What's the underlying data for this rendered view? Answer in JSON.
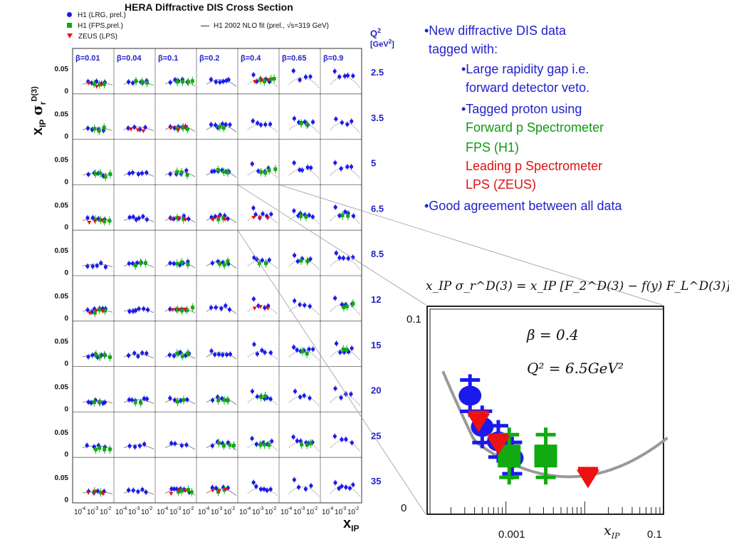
{
  "title": "HERA Diffractive DIS Cross Section",
  "legend": [
    {
      "label": "H1 (LRG, prel.)",
      "color": "#1a1aee",
      "marker": "circle"
    },
    {
      "label": "H1 (FPS,prel.)",
      "color": "#11aa11",
      "marker": "square"
    },
    {
      "label": "ZEUS (LPS)",
      "color": "#ee1111",
      "marker": "triangle-down"
    },
    {
      "label": "H1 2002 NLO fit (prel., √s=319 GeV)",
      "color": "#333333",
      "marker": "line"
    }
  ],
  "axes": {
    "ylabel": "x",
    "ylabel_sub": "IP",
    "ylabel_sigma": "σ",
    "ylabel_r": "r",
    "ylabel_sup": "D(3)",
    "xlabel": "x",
    "xlabel_sub": "IP",
    "q2_label": "Q",
    "q2_sup": "2",
    "q2_unit": "[GeV",
    "q2_unit_sup": "2",
    "q2_unit_close": "]",
    "ytick_005": "0.05",
    "ytick_0": "0",
    "xtick_base": "10",
    "xtick_exps": [
      "-4",
      "-3",
      "-2"
    ]
  },
  "chart_data": {
    "type": "scatter",
    "title": "HERA Diffractive DIS Cross Section",
    "xlabel": "xIP",
    "ylabel": "xIP σr D(3)",
    "xscale": "log",
    "columns_beta": [
      "β=0.01",
      "β=0.04",
      "β=0.1",
      "β=0.2",
      "β=0.4",
      "β=0.65",
      "β=0.9"
    ],
    "rows_q2": [
      "2.5",
      "3.5",
      "5",
      "6.5",
      "8.5",
      "12",
      "15",
      "20",
      "25",
      "35"
    ],
    "ylim": [
      0,
      0.075
    ],
    "panel_yticks": [
      0,
      0.05
    ],
    "grid": true
  },
  "inset": {
    "equation_lhs": "x",
    "equation": "x_IP σ_r^D(3) = x_IP [F_2^D(3) − f(y) F_L^D(3)]",
    "beta_text": "β = 0.4",
    "q2_text": "Q² = 6.5GeV²",
    "ytick_top": "0.1",
    "ytick_bottom": "0",
    "xtick_001": "0.001",
    "xtick_01": "0.1",
    "xlabel": "x",
    "xlabel_sub": "IP",
    "chart_data": {
      "type": "scatter",
      "xscale": "log",
      "xlim": [
        0.0001,
        0.1
      ],
      "ylim": [
        0,
        0.1
      ],
      "series": [
        {
          "name": "H1 (LRG, prel.)",
          "x": [
            0.00035,
            0.0005,
            0.0008,
            0.0012
          ],
          "y": [
            0.057,
            0.042,
            0.035,
            0.027
          ]
        },
        {
          "name": "H1 (FPS,prel.)",
          "x": [
            0.0011,
            0.0032
          ],
          "y": [
            0.028,
            0.028
          ]
        },
        {
          "name": "ZEUS (LPS)",
          "x": [
            0.00045,
            0.0008,
            0.011
          ],
          "y": [
            0.045,
            0.034,
            0.018
          ]
        }
      ]
    }
  },
  "bullets": {
    "b1_line1": "•New diffractive DIS data",
    "b1_line2": "tagged with:",
    "b2_line1": "•Large rapidity gap i.e.",
    "b2_line2": "forward detector veto.",
    "b3_line1": "•Tagged proton using",
    "b3_green1": "Forward p Spectrometer",
    "b3_green2": "FPS (H1)",
    "b3_red1": "Leading p Spectrometer",
    "b3_red2": "LPS (ZEUS)",
    "b4": "•Good agreement between all data"
  }
}
